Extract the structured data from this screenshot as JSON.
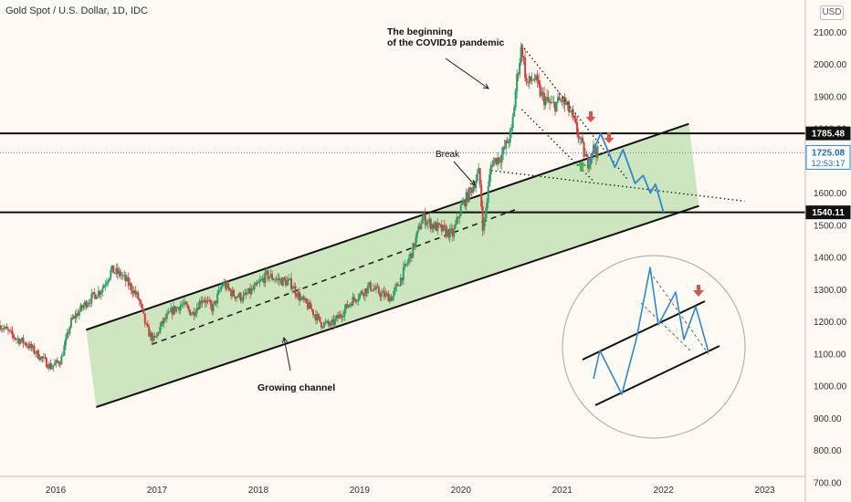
{
  "header": {
    "title": "Gold Spot / U.S. Dollar, 1D, IDC",
    "currency": "USD"
  },
  "chart_data": {
    "type": "candlestick",
    "title": "Gold Spot / U.S. Dollar, 1D, IDC",
    "y_ticks": [
      700,
      800,
      900,
      1000,
      1100,
      1200,
      1300,
      1400,
      1500,
      1600,
      1700,
      1800,
      1900,
      2000,
      2100
    ],
    "y_tick_labels": [
      "700.00",
      "800.00",
      "900.00",
      "1000.00",
      "1100.00",
      "1200.00",
      "1300.00",
      "1400.00",
      "1500.00",
      "1600.00",
      "1700.00",
      "1800.00",
      "1900.00",
      "2000.00",
      "2100.00"
    ],
    "ylim": [
      640,
      2200
    ],
    "x_ticks": [
      2016,
      2017,
      2018,
      2019,
      2020,
      2021,
      2022,
      2023
    ],
    "x_tick_labels": [
      "2016",
      "2017",
      "2018",
      "2019",
      "2020",
      "2021",
      "2022",
      "2023"
    ],
    "xlim": [
      2015.45,
      2023.4
    ],
    "price_path": [
      [
        2015.45,
        1190
      ],
      [
        2015.6,
        1150
      ],
      [
        2015.72,
        1130
      ],
      [
        2015.85,
        1090
      ],
      [
        2015.95,
        1060
      ],
      [
        2016.05,
        1080
      ],
      [
        2016.15,
        1200
      ],
      [
        2016.3,
        1260
      ],
      [
        2016.45,
        1300
      ],
      [
        2016.55,
        1360
      ],
      [
        2016.65,
        1345
      ],
      [
        2016.75,
        1305
      ],
      [
        2016.82,
        1270
      ],
      [
        2016.9,
        1175
      ],
      [
        2016.97,
        1140
      ],
      [
        2017.05,
        1195
      ],
      [
        2017.15,
        1235
      ],
      [
        2017.25,
        1255
      ],
      [
        2017.35,
        1225
      ],
      [
        2017.45,
        1275
      ],
      [
        2017.55,
        1240
      ],
      [
        2017.65,
        1320
      ],
      [
        2017.75,
        1285
      ],
      [
        2017.85,
        1275
      ],
      [
        2017.97,
        1305
      ],
      [
        2018.08,
        1345
      ],
      [
        2018.2,
        1330
      ],
      [
        2018.32,
        1320
      ],
      [
        2018.42,
        1270
      ],
      [
        2018.52,
        1240
      ],
      [
        2018.62,
        1195
      ],
      [
        2018.72,
        1190
      ],
      [
        2018.82,
        1225
      ],
      [
        2018.92,
        1265
      ],
      [
        2019.0,
        1285
      ],
      [
        2019.1,
        1310
      ],
      [
        2019.22,
        1285
      ],
      [
        2019.32,
        1275
      ],
      [
        2019.42,
        1345
      ],
      [
        2019.52,
        1420
      ],
      [
        2019.62,
        1525
      ],
      [
        2019.72,
        1500
      ],
      [
        2019.82,
        1485
      ],
      [
        2019.92,
        1470
      ],
      [
        2020.0,
        1555
      ],
      [
        2020.1,
        1610
      ],
      [
        2020.18,
        1665
      ],
      [
        2020.22,
        1480
      ],
      [
        2020.3,
        1695
      ],
      [
        2020.4,
        1715
      ],
      [
        2020.5,
        1790
      ],
      [
        2020.55,
        1950
      ],
      [
        2020.6,
        2060
      ],
      [
        2020.65,
        1935
      ],
      [
        2020.72,
        1960
      ],
      [
        2020.8,
        1900
      ],
      [
        2020.9,
        1870
      ],
      [
        2021.0,
        1890
      ],
      [
        2021.08,
        1850
      ],
      [
        2021.15,
        1790
      ],
      [
        2021.2,
        1740
      ],
      [
        2021.25,
        1690
      ],
      [
        2021.3,
        1740
      ],
      [
        2021.35,
        1725
      ]
    ],
    "resistance_level": 1785.48,
    "support_level": 1540.11,
    "current_price": 1725.08,
    "countdown": "12:53:17",
    "channel": {
      "label": "Growing channel",
      "upper": [
        [
          2016.3,
          1175
        ],
        [
          2022.25,
          1815
        ]
      ],
      "lower": [
        [
          2016.4,
          935
        ],
        [
          2022.35,
          1560
        ]
      ],
      "median": [
        [
          2016.95,
          1130
        ],
        [
          2020.55,
          1550
        ]
      ]
    },
    "pattern_lines": {
      "upper_falling": [
        [
          2020.6,
          2060
        ],
        [
          2021.65,
          1640
        ]
      ],
      "lower_falling": [
        [
          2020.6,
          1860
        ],
        [
          2021.3,
          1640
        ]
      ],
      "break_line": [
        [
          2020.3,
          1670
        ],
        [
          2022.8,
          1575
        ]
      ]
    },
    "projection": [
      [
        2021.25,
        1690
      ],
      [
        2021.38,
        1785
      ],
      [
        2021.52,
        1680
      ],
      [
        2021.6,
        1735
      ],
      [
        2021.72,
        1630
      ],
      [
        2021.8,
        1655
      ],
      [
        2021.87,
        1600
      ],
      [
        2021.92,
        1628
      ],
      [
        2022.0,
        1540
      ]
    ],
    "annotations": {
      "pandemic_line1": "The beginning",
      "pandemic_line2": "of the COVID19 pandemic",
      "break": "Break",
      "channel": "Growing channel"
    },
    "axis_badges": {
      "resistance": "1785.48",
      "support": "1540.11",
      "current": "1725.08",
      "countdown": "12:53:17"
    }
  }
}
